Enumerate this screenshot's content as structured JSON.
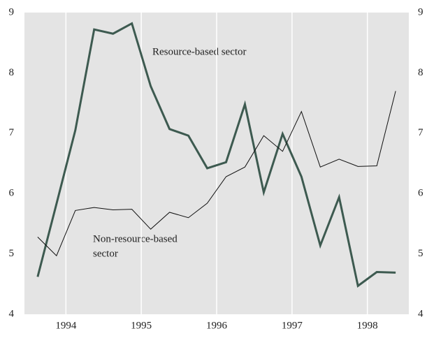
{
  "chart_data": {
    "type": "line",
    "annotations": [
      "Resource-based sector",
      "Non-resource-based",
      "sector"
    ],
    "x": [
      1993.625,
      1993.875,
      1994.125,
      1994.375,
      1994.625,
      1994.875,
      1995.125,
      1995.375,
      1995.625,
      1995.875,
      1996.125,
      1996.375,
      1996.625,
      1996.875,
      1997.125,
      1997.375,
      1997.625,
      1997.875,
      1998.125,
      1998.375
    ],
    "series": [
      {
        "name": "Resource-based sector",
        "color": "#3d5a50",
        "width": 3,
        "values": [
          4.62,
          5.83,
          7.05,
          8.72,
          8.65,
          8.82,
          7.78,
          7.07,
          6.96,
          6.42,
          6.52,
          7.48,
          6.02,
          6.99,
          6.28,
          5.14,
          5.94,
          4.47,
          4.7,
          4.69
        ]
      },
      {
        "name": "Non-resource-based sector",
        "color": "#111111",
        "width": 1,
        "values": [
          5.28,
          4.97,
          5.72,
          5.77,
          5.73,
          5.74,
          5.41,
          5.69,
          5.6,
          5.84,
          6.28,
          6.44,
          6.96,
          6.7,
          7.36,
          6.44,
          6.57,
          6.45,
          6.46,
          7.7
        ]
      }
    ],
    "xlim": [
      1993.45,
      1998.55
    ],
    "xticks": [
      1994,
      1995,
      1996,
      1997,
      1998
    ],
    "ylim": [
      4,
      9
    ],
    "yticks": [
      4,
      5,
      6,
      7,
      8,
      9
    ],
    "y2lim": [
      4,
      9
    ],
    "y2ticks": [
      4,
      5,
      6,
      7,
      8,
      9
    ],
    "background": "#e4e4e4",
    "grid": true
  }
}
